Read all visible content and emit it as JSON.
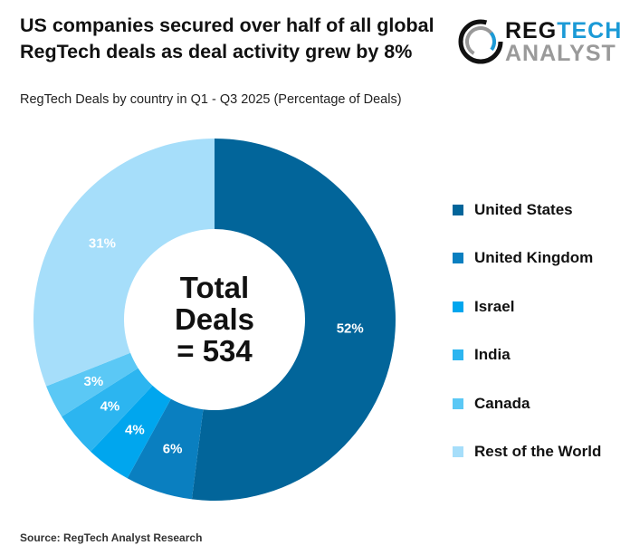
{
  "title": "US companies secured over half of all global RegTech deals as deal activity grew by 8%",
  "subtitle": "RegTech Deals by country in Q1 - Q3 2025 (Percentage of Deals)",
  "source": "Source: RegTech Analyst Research",
  "logo": {
    "text_part1": "REG",
    "text_part2": "TECH",
    "text_line2": "ANALYST"
  },
  "chart_data": {
    "type": "pie",
    "variant": "donut",
    "center_text": [
      "Total",
      "Deals",
      "= 534"
    ],
    "categories": [
      "United States",
      "United Kingdom",
      "Israel",
      "India",
      "Canada",
      "Rest of the World"
    ],
    "values": [
      52,
      6,
      4,
      4,
      3,
      31
    ],
    "labels": [
      "52%",
      "6%",
      "4%",
      "4%",
      "3%",
      "31%"
    ],
    "colors": [
      "#02659a",
      "#0a7fc0",
      "#00a6ee",
      "#2cb5f0",
      "#5bc8f5",
      "#a6defa"
    ],
    "legend_position": "right",
    "start": "top, clockwise"
  }
}
